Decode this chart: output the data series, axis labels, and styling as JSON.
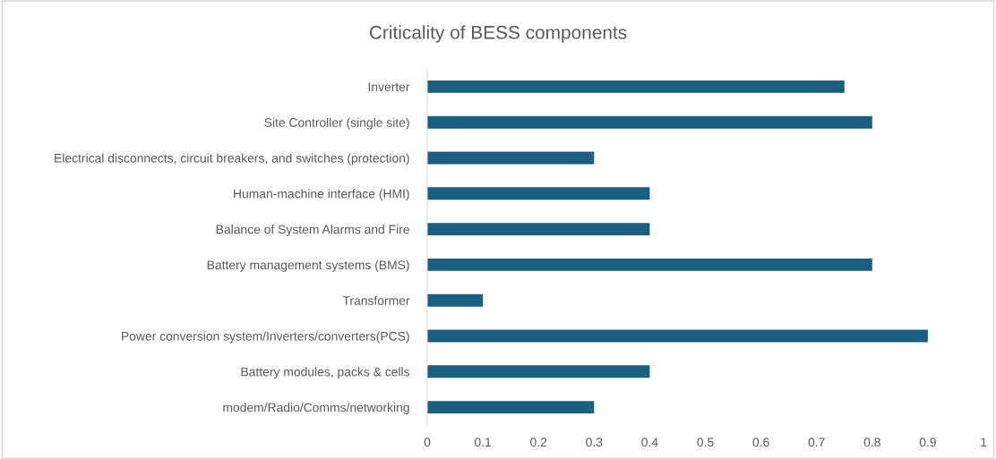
{
  "chart_data": {
    "type": "bar",
    "orientation": "horizontal",
    "title": "Criticality of BESS components",
    "categories": [
      "Inverter",
      "Site Controller (single site)",
      "Electrical disconnects, circuit breakers, and switches (protection)",
      "Human-machine interface (HMI)",
      "Balance of System Alarms and Fire",
      "Battery management systems (BMS)",
      "Transformer",
      "Power conversion system/Inverters/converters(PCS)",
      "Battery modules, packs & cells",
      "modem/Radio/Comms/networking"
    ],
    "values": [
      0.75,
      0.8,
      0.3,
      0.4,
      0.4,
      0.8,
      0.1,
      0.9,
      0.4,
      0.3
    ],
    "color": "#1a5f82",
    "xlim": [
      0,
      1
    ],
    "xticks": [
      0,
      0.1,
      0.2,
      0.3,
      0.4,
      0.5,
      0.6,
      0.7,
      0.8,
      0.9,
      1
    ],
    "grid": false,
    "legend": false
  }
}
